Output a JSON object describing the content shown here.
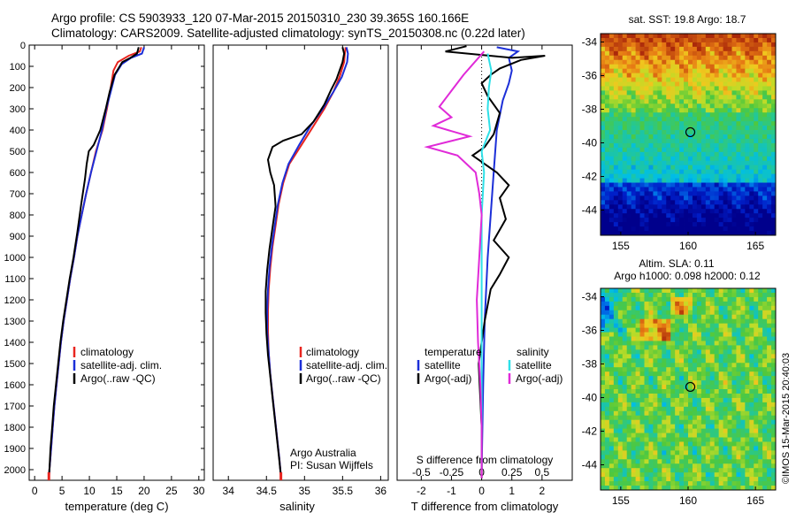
{
  "header": {
    "line1": "Argo profile: CS 5903933_120 07-Mar-2015 20150310_230 39.365S 160.166E",
    "line2": "Climatology: CARS2009. Satellite-adjusted climatology: synTS_20150308.nc (0.22d later)"
  },
  "colors": {
    "clim": "#e8251f",
    "sat": "#1c2fd8",
    "argo": "#000000",
    "sal_sat": "#2ee0e8",
    "sal_argo": "#e02ad8"
  },
  "chart_data": [
    {
      "type": "line",
      "id": "temperature",
      "xlabel": "temperature (deg C)",
      "ylabel": "",
      "xlim": [
        -1,
        31
      ],
      "ylim": [
        2050,
        0
      ],
      "y_inverted": true,
      "xticks": [
        0,
        5,
        10,
        15,
        20,
        25,
        30
      ],
      "yticks": [
        0,
        100,
        200,
        300,
        400,
        500,
        600,
        700,
        800,
        900,
        1000,
        1100,
        1200,
        1300,
        1400,
        1500,
        1600,
        1700,
        1800,
        1900,
        2000
      ],
      "legend": [
        "climatology",
        "satellite-adj. clim.",
        "Argo(..raw -QC)"
      ],
      "legend_position": "lower-center",
      "series": [
        {
          "name": "climatology",
          "color_key": "clim",
          "points": [
            [
              19.5,
              10
            ],
            [
              19.2,
              30
            ],
            [
              17.2,
              50
            ],
            [
              15.2,
              80
            ],
            [
              14.4,
              120
            ],
            [
              13.9,
              200
            ],
            [
              13.2,
              300
            ],
            [
              12.4,
              400
            ],
            [
              11.2,
              500
            ],
            [
              10.3,
              600
            ],
            [
              9.4,
              700
            ],
            [
              8.6,
              800
            ],
            [
              7.8,
              900
            ],
            [
              7.2,
              1000
            ],
            [
              6.5,
              1100
            ],
            [
              5.9,
              1200
            ],
            [
              5.3,
              1300
            ],
            [
              4.8,
              1400
            ],
            [
              4.4,
              1500
            ],
            [
              4.0,
              1600
            ],
            [
              3.6,
              1700
            ],
            [
              3.3,
              1800
            ],
            [
              3.0,
              1900
            ],
            [
              2.7,
              2000
            ],
            [
              2.6,
              2040
            ]
          ]
        },
        {
          "name": "satellite-adj. clim.",
          "color_key": "sat",
          "points": [
            [
              20.0,
              10
            ],
            [
              19.6,
              40
            ],
            [
              17.6,
              60
            ],
            [
              15.9,
              90
            ],
            [
              14.7,
              140
            ],
            [
              13.9,
              220
            ],
            [
              13.1,
              300
            ],
            [
              12.3,
              400
            ],
            [
              11.3,
              500
            ],
            [
              10.3,
              600
            ],
            [
              9.4,
              700
            ],
            [
              8.6,
              800
            ],
            [
              7.8,
              900
            ],
            [
              7.2,
              1000
            ],
            [
              6.5,
              1100
            ],
            [
              5.9,
              1200
            ],
            [
              5.3,
              1300
            ],
            [
              4.8,
              1400
            ],
            [
              4.4,
              1500
            ],
            [
              4.0,
              1600
            ],
            [
              3.6,
              1700
            ],
            [
              3.3,
              1800
            ],
            [
              3.0,
              1900
            ],
            [
              2.7,
              2000
            ],
            [
              2.6,
              2040
            ]
          ]
        },
        {
          "name": "Argo(..raw -QC)",
          "color_key": "argo",
          "points": [
            [
              19.0,
              10
            ],
            [
              18.7,
              40
            ],
            [
              17.5,
              60
            ],
            [
              16.0,
              80
            ],
            [
              14.6,
              140
            ],
            [
              13.7,
              220
            ],
            [
              13.0,
              300
            ],
            [
              12.0,
              400
            ],
            [
              10.8,
              470
            ],
            [
              9.9,
              500
            ],
            [
              9.5,
              560
            ],
            [
              9.2,
              630
            ],
            [
              8.5,
              750
            ],
            [
              7.8,
              880
            ],
            [
              7.1,
              1000
            ],
            [
              6.4,
              1100
            ],
            [
              5.8,
              1200
            ],
            [
              5.2,
              1300
            ],
            [
              4.7,
              1400
            ],
            [
              4.3,
              1500
            ],
            [
              3.9,
              1600
            ],
            [
              3.5,
              1700
            ],
            [
              3.2,
              1800
            ],
            [
              2.9,
              1900
            ],
            [
              2.7,
              2000
            ],
            [
              2.6,
              2030
            ]
          ]
        }
      ]
    },
    {
      "type": "line",
      "id": "salinity",
      "xlabel": "salinity",
      "xlim": [
        33.8,
        36.1
      ],
      "ylim": [
        2050,
        0
      ],
      "xticks": [
        34,
        34.5,
        35,
        35.5,
        36
      ],
      "legend": [
        "climatology",
        "satellite-adj. clim.",
        "Argo(..raw -QC)"
      ],
      "credit": [
        "Argo Australia",
        "PI: Susan Wijffels"
      ],
      "series": [
        {
          "name": "climatology",
          "color_key": "clim",
          "points": [
            [
              35.54,
              10
            ],
            [
              35.53,
              40
            ],
            [
              35.52,
              80
            ],
            [
              35.46,
              150
            ],
            [
              35.38,
              220
            ],
            [
              35.26,
              300
            ],
            [
              35.12,
              380
            ],
            [
              34.96,
              470
            ],
            [
              34.8,
              560
            ],
            [
              34.72,
              650
            ],
            [
              34.66,
              750
            ],
            [
              34.62,
              850
            ],
            [
              34.58,
              950
            ],
            [
              34.55,
              1050
            ],
            [
              34.53,
              1150
            ],
            [
              34.52,
              1250
            ],
            [
              34.52,
              1350
            ],
            [
              34.53,
              1450
            ],
            [
              34.55,
              1550
            ],
            [
              34.58,
              1650
            ],
            [
              34.61,
              1750
            ],
            [
              34.64,
              1850
            ],
            [
              34.67,
              1950
            ],
            [
              34.69,
              2030
            ]
          ]
        },
        {
          "name": "satellite-adj. clim.",
          "color_key": "sat",
          "points": [
            [
              35.55,
              10
            ],
            [
              35.57,
              40
            ],
            [
              35.56,
              80
            ],
            [
              35.49,
              150
            ],
            [
              35.38,
              220
            ],
            [
              35.24,
              300
            ],
            [
              35.08,
              380
            ],
            [
              34.93,
              470
            ],
            [
              34.79,
              560
            ],
            [
              34.71,
              650
            ],
            [
              34.65,
              750
            ],
            [
              34.61,
              850
            ],
            [
              34.57,
              950
            ],
            [
              34.54,
              1050
            ],
            [
              34.52,
              1150
            ],
            [
              34.51,
              1250
            ],
            [
              34.51,
              1350
            ],
            [
              34.53,
              1450
            ],
            [
              34.55,
              1550
            ],
            [
              34.58,
              1650
            ],
            [
              34.61,
              1750
            ],
            [
              34.64,
              1850
            ],
            [
              34.67,
              1950
            ],
            [
              34.69,
              2030
            ]
          ]
        },
        {
          "name": "Argo(..raw -QC)",
          "color_key": "argo",
          "points": [
            [
              35.5,
              10
            ],
            [
              35.52,
              40
            ],
            [
              35.5,
              80
            ],
            [
              35.42,
              160
            ],
            [
              35.35,
              210
            ],
            [
              35.26,
              280
            ],
            [
              35.12,
              360
            ],
            [
              34.96,
              420
            ],
            [
              34.72,
              450
            ],
            [
              34.58,
              480
            ],
            [
              34.52,
              540
            ],
            [
              34.55,
              600
            ],
            [
              34.6,
              660
            ],
            [
              34.62,
              760
            ],
            [
              34.58,
              860
            ],
            [
              34.54,
              960
            ],
            [
              34.51,
              1060
            ],
            [
              34.49,
              1160
            ],
            [
              34.49,
              1260
            ],
            [
              34.5,
              1360
            ],
            [
              34.52,
              1460
            ],
            [
              34.55,
              1560
            ],
            [
              34.58,
              1660
            ],
            [
              34.61,
              1760
            ],
            [
              34.64,
              1860
            ],
            [
              34.67,
              1960
            ],
            [
              34.69,
              2030
            ]
          ]
        }
      ]
    },
    {
      "type": "line",
      "id": "difference",
      "xlabel": "T difference from climatology",
      "xlabel_top": "S difference from climatology",
      "xlim": [
        -2.8,
        3.0
      ],
      "ylim": [
        2050,
        0
      ],
      "xticks": [
        -2,
        -1,
        0,
        1,
        2
      ],
      "xticks_top": [
        -0.5,
        -0.25,
        0,
        0.25,
        0.5
      ],
      "legend_temperature": [
        "temperature",
        "satellite",
        "Argo(-adj)"
      ],
      "legend_salinity": [
        "salinity",
        "satellite",
        "Argo(-adj)"
      ],
      "series": [
        {
          "name": "T satellite",
          "color_key": "sat",
          "points": [
            [
              0.5,
              10
            ],
            [
              1.2,
              30
            ],
            [
              0.9,
              60
            ],
            [
              1.0,
              120
            ],
            [
              0.9,
              180
            ],
            [
              0.7,
              260
            ],
            [
              0.5,
              400
            ],
            [
              0.4,
              600
            ],
            [
              0.3,
              800
            ],
            [
              0.2,
              1000
            ],
            [
              0.1,
              1300
            ],
            [
              0.05,
              1600
            ],
            [
              0.0,
              2000
            ]
          ]
        },
        {
          "name": "T Argo",
          "color_key": "argo",
          "points": [
            [
              -0.5,
              5
            ],
            [
              -1.2,
              30
            ],
            [
              1.0,
              60
            ],
            [
              2.1,
              50
            ],
            [
              1.3,
              70
            ],
            [
              0.6,
              110
            ],
            [
              0.3,
              140
            ],
            [
              0.0,
              180
            ],
            [
              0.2,
              240
            ],
            [
              0.6,
              320
            ],
            [
              0.4,
              420
            ],
            [
              0.1,
              480
            ],
            [
              -0.3,
              520
            ],
            [
              0.5,
              600
            ],
            [
              0.9,
              660
            ],
            [
              0.6,
              720
            ],
            [
              0.8,
              820
            ],
            [
              0.4,
              920
            ],
            [
              0.9,
              1000
            ],
            [
              0.6,
              1080
            ],
            [
              0.3,
              1150
            ],
            [
              0.1,
              1300
            ],
            [
              -0.1,
              1500
            ],
            [
              0.0,
              1800
            ],
            [
              0.0,
              2040
            ]
          ]
        },
        {
          "name": "S satellite",
          "color_key": "sal_sat",
          "points": [
            [
              0.05,
              40
            ],
            [
              0.08,
              120
            ],
            [
              0.06,
              200
            ],
            [
              0.05,
              300
            ],
            [
              0.07,
              400
            ],
            [
              0.0,
              500
            ],
            [
              0.02,
              600
            ],
            [
              0.0,
              800
            ],
            [
              0.0,
              1200
            ],
            [
              0.0,
              2000
            ]
          ]
        },
        {
          "name": "S Argo",
          "color_key": "sal_argo",
          "points": [
            [
              0.02,
              30
            ],
            [
              -0.15,
              140
            ],
            [
              -0.35,
              290
            ],
            [
              -0.25,
              340
            ],
            [
              -0.4,
              380
            ],
            [
              -0.1,
              430
            ],
            [
              -0.45,
              480
            ],
            [
              -0.2,
              520
            ],
            [
              -0.05,
              600
            ],
            [
              -0.02,
              700
            ],
            [
              0.0,
              800
            ],
            [
              -0.02,
              1000
            ],
            [
              -0.04,
              1200
            ],
            [
              -0.03,
              1400
            ],
            [
              -0.01,
              1600
            ],
            [
              0.0,
              1800
            ],
            [
              0.0,
              2040
            ]
          ]
        }
      ]
    },
    {
      "type": "heatmap",
      "id": "sst_map",
      "title": "sat. SST: 19.8  Argo: 18.7",
      "xlim": [
        153.5,
        166.5
      ],
      "ylim": [
        -45.5,
        -33.5
      ],
      "xticks": [
        155,
        160,
        165
      ],
      "yticks": [
        -34,
        -36,
        -38,
        -40,
        -42,
        -44
      ],
      "marker": {
        "lon": 160.166,
        "lat": -39.365
      }
    },
    {
      "type": "heatmap",
      "id": "sla_map",
      "title": "Altim. SLA: 0.11",
      "subtitle": "Argo h1000: 0.098 h2000: 0.12",
      "xlim": [
        153.5,
        166.5
      ],
      "ylim": [
        -45.5,
        -33.5
      ],
      "xticks": [
        155,
        160,
        165
      ],
      "yticks": [
        -34,
        -36,
        -38,
        -40,
        -42,
        -44
      ],
      "marker": {
        "lon": 160.166,
        "lat": -39.365
      }
    }
  ],
  "credit_side": "©IMOS 15-Mar-2015 20:40:03"
}
